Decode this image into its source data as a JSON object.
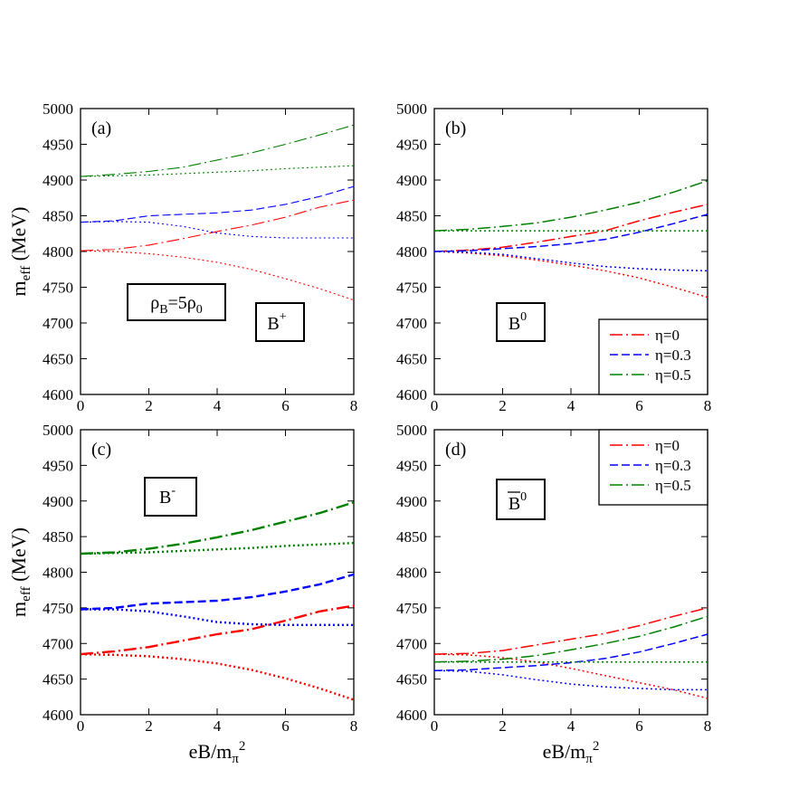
{
  "chart_data": [
    {
      "type": "line",
      "panel_label": "(a)",
      "annotation": "B+",
      "density_label": "ρB=5ρ0",
      "ylabel": "m_eff (MeV)",
      "xlabel": "",
      "xlim": [
        0,
        8
      ],
      "ylim": [
        4600,
        5000
      ],
      "xticks": [
        "0",
        "2",
        "4",
        "6",
        "8"
      ],
      "yticks": [
        "4600",
        "4650",
        "4700",
        "4750",
        "4800",
        "4850",
        "4900",
        "4950",
        "5000"
      ],
      "series": [
        {
          "eta": "0",
          "style": "dashdot",
          "color": "#ff0000",
          "x": [
            0,
            1,
            2,
            3,
            4,
            5,
            6,
            7,
            8
          ],
          "y": [
            4801,
            4803,
            4809,
            4818,
            4828,
            4837,
            4848,
            4862,
            4872
          ]
        },
        {
          "eta": "0",
          "style": "dotted",
          "color": "#ff0000",
          "x": [
            0,
            1,
            2,
            3,
            4,
            5,
            6,
            7,
            8
          ],
          "y": [
            4801,
            4800,
            4797,
            4792,
            4785,
            4775,
            4762,
            4748,
            4732
          ]
        },
        {
          "eta": "0.3",
          "style": "dashed",
          "color": "#0000ff",
          "x": [
            0,
            1,
            2,
            3,
            4,
            5,
            6,
            7,
            8
          ],
          "y": [
            4841,
            4843,
            4850,
            4852,
            4854,
            4858,
            4866,
            4877,
            4891
          ]
        },
        {
          "eta": "0.3",
          "style": "dotted",
          "color": "#0000ff",
          "x": [
            0,
            1,
            2,
            3,
            4,
            5,
            6,
            7,
            8
          ],
          "y": [
            4841,
            4842,
            4841,
            4835,
            4826,
            4821,
            4819,
            4819,
            4819
          ]
        },
        {
          "eta": "0.5",
          "style": "dashdot",
          "color": "#008000",
          "x": [
            0,
            1,
            2,
            3,
            4,
            5,
            6,
            7,
            8
          ],
          "y": [
            4905,
            4908,
            4912,
            4918,
            4928,
            4938,
            4950,
            4963,
            4977
          ]
        },
        {
          "eta": "0.5",
          "style": "dotted",
          "color": "#008000",
          "x": [
            0,
            1,
            2,
            3,
            4,
            5,
            6,
            7,
            8
          ],
          "y": [
            4905,
            4906,
            4907,
            4909,
            4911,
            4913,
            4916,
            4918,
            4920
          ]
        }
      ]
    },
    {
      "type": "line",
      "panel_label": "(b)",
      "annotation": "B0",
      "legend": {
        "placement": "bottom-right",
        "entries": [
          "η=0",
          "η=0.3",
          "η=0.5"
        ]
      },
      "ylabel": "",
      "xlabel": "",
      "xlim": [
        0,
        8
      ],
      "ylim": [
        4600,
        5000
      ],
      "xticks": [
        "0",
        "2",
        "4",
        "6",
        "8"
      ],
      "yticks": [
        "4600",
        "4650",
        "4700",
        "4750",
        "4800",
        "4850",
        "4900",
        "4950",
        "5000"
      ],
      "series": [
        {
          "eta": "0",
          "style": "dashdot",
          "color": "#ff0000",
          "x": [
            0,
            1,
            2,
            3,
            4,
            5,
            6,
            7,
            8
          ],
          "y": [
            4800,
            4802,
            4806,
            4813,
            4821,
            4829,
            4843,
            4855,
            4866
          ]
        },
        {
          "eta": "0",
          "style": "dotted",
          "color": "#ff0000",
          "x": [
            0,
            1,
            2,
            3,
            4,
            5,
            6,
            7,
            8
          ],
          "y": [
            4800,
            4798,
            4794,
            4788,
            4781,
            4773,
            4763,
            4750,
            4736
          ]
        },
        {
          "eta": "0.3",
          "style": "dashed",
          "color": "#0000ff",
          "x": [
            0,
            1,
            2,
            3,
            4,
            5,
            6,
            7,
            8
          ],
          "y": [
            4800,
            4801,
            4804,
            4807,
            4811,
            4817,
            4827,
            4839,
            4852
          ]
        },
        {
          "eta": "0.3",
          "style": "dotted",
          "color": "#0000ff",
          "x": [
            0,
            1,
            2,
            3,
            4,
            5,
            6,
            7,
            8
          ],
          "y": [
            4800,
            4799,
            4796,
            4790,
            4784,
            4779,
            4776,
            4774,
            4773
          ]
        },
        {
          "eta": "0.5",
          "style": "dashdot",
          "color": "#008000",
          "x": [
            0,
            1,
            2,
            3,
            4,
            5,
            6,
            7,
            8
          ],
          "y": [
            4829,
            4831,
            4835,
            4840,
            4848,
            4858,
            4869,
            4883,
            4899
          ]
        },
        {
          "eta": "0.5",
          "style": "dotted",
          "color": "#008000",
          "x": [
            0,
            1,
            2,
            3,
            4,
            5,
            6,
            7,
            8
          ],
          "y": [
            4829,
            4829,
            4829,
            4829,
            4829,
            4829,
            4829,
            4829,
            4829
          ]
        }
      ]
    },
    {
      "type": "line",
      "panel_label": "(c)",
      "annotation": "B-",
      "ylabel": "m_eff (MeV)",
      "xlabel": "eB/m_π^2",
      "xlim": [
        0,
        8
      ],
      "ylim": [
        4600,
        5000
      ],
      "xticks": [
        "0",
        "2",
        "4",
        "6",
        "8"
      ],
      "yticks": [
        "4600",
        "4650",
        "4700",
        "4750",
        "4800",
        "4850",
        "4900",
        "4950",
        "5000"
      ],
      "series": [
        {
          "eta": "0",
          "style": "dashdot",
          "color": "#ff0000",
          "x": [
            0,
            1,
            2,
            3,
            4,
            5,
            6,
            7,
            8
          ],
          "y": [
            4685,
            4689,
            4695,
            4704,
            4713,
            4720,
            4732,
            4745,
            4753
          ]
        },
        {
          "eta": "0",
          "style": "dotted",
          "color": "#ff0000",
          "x": [
            0,
            1,
            2,
            3,
            4,
            5,
            6,
            7,
            8
          ],
          "y": [
            4685,
            4684,
            4682,
            4678,
            4672,
            4663,
            4651,
            4637,
            4621
          ]
        },
        {
          "eta": "0.3",
          "style": "dashed",
          "color": "#0000ff",
          "x": [
            0,
            1,
            2,
            3,
            4,
            5,
            6,
            7,
            8
          ],
          "y": [
            4748,
            4750,
            4756,
            4758,
            4760,
            4765,
            4773,
            4783,
            4797
          ]
        },
        {
          "eta": "0.3",
          "style": "dotted",
          "color": "#0000ff",
          "x": [
            0,
            1,
            2,
            3,
            4,
            5,
            6,
            7,
            8
          ],
          "y": [
            4748,
            4748,
            4745,
            4738,
            4730,
            4727,
            4726,
            4726,
            4726
          ]
        },
        {
          "eta": "0.5",
          "style": "dashdot",
          "color": "#008000",
          "x": [
            0,
            1,
            2,
            3,
            4,
            5,
            6,
            7,
            8
          ],
          "y": [
            4826,
            4828,
            4833,
            4840,
            4849,
            4859,
            4871,
            4883,
            4898
          ]
        },
        {
          "eta": "0.5",
          "style": "dotted",
          "color": "#008000",
          "x": [
            0,
            1,
            2,
            3,
            4,
            5,
            6,
            7,
            8
          ],
          "y": [
            4826,
            4827,
            4828,
            4830,
            4832,
            4834,
            4837,
            4839,
            4841
          ]
        }
      ]
    },
    {
      "type": "line",
      "panel_label": "(d)",
      "annotation": "B0 (bar)",
      "legend": {
        "placement": "top-right",
        "entries": [
          "η=0",
          "η=0.3",
          "η=0.5"
        ]
      },
      "ylabel": "",
      "xlabel": "eB/m_π^2",
      "xlim": [
        0,
        8
      ],
      "ylim": [
        4600,
        5000
      ],
      "xticks": [
        "0",
        "2",
        "4",
        "6",
        "8"
      ],
      "yticks": [
        "4600",
        "4650",
        "4700",
        "4750",
        "4800",
        "4850",
        "4900",
        "4950",
        "5000"
      ],
      "series": [
        {
          "eta": "0",
          "style": "dashdot",
          "color": "#ff0000",
          "x": [
            0,
            1,
            2,
            3,
            4,
            5,
            6,
            7,
            8
          ],
          "y": [
            4685,
            4686,
            4690,
            4698,
            4706,
            4714,
            4725,
            4738,
            4750
          ]
        },
        {
          "eta": "0",
          "style": "dotted",
          "color": "#ff0000",
          "x": [
            0,
            1,
            2,
            3,
            4,
            5,
            6,
            7,
            8
          ],
          "y": [
            4685,
            4684,
            4680,
            4674,
            4665,
            4655,
            4645,
            4635,
            4623
          ]
        },
        {
          "eta": "0.3",
          "style": "dashed",
          "color": "#0000ff",
          "x": [
            0,
            1,
            2,
            3,
            4,
            5,
            6,
            7,
            8
          ],
          "y": [
            4662,
            4663,
            4666,
            4669,
            4673,
            4679,
            4688,
            4700,
            4713
          ]
        },
        {
          "eta": "0.3",
          "style": "dotted",
          "color": "#0000ff",
          "x": [
            0,
            1,
            2,
            3,
            4,
            5,
            6,
            7,
            8
          ],
          "y": [
            4662,
            4661,
            4656,
            4649,
            4643,
            4639,
            4637,
            4635,
            4635
          ]
        },
        {
          "eta": "0.5",
          "style": "dashdot",
          "color": "#008000",
          "x": [
            0,
            1,
            2,
            3,
            4,
            5,
            6,
            7,
            8
          ],
          "y": [
            4674,
            4675,
            4678,
            4683,
            4691,
            4700,
            4710,
            4723,
            4738
          ]
        },
        {
          "eta": "0.5",
          "style": "dotted",
          "color": "#008000",
          "x": [
            0,
            1,
            2,
            3,
            4,
            5,
            6,
            7,
            8
          ],
          "y": [
            4674,
            4674,
            4674,
            4674,
            4674,
            4674,
            4674,
            4674,
            4674
          ]
        }
      ]
    }
  ]
}
